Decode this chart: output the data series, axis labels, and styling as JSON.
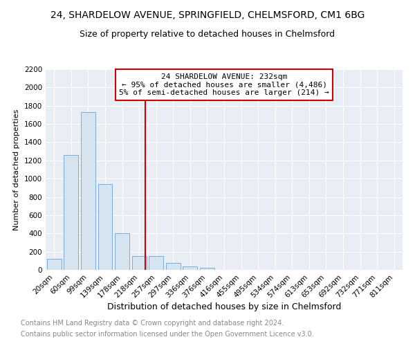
{
  "title": "24, SHARDELOW AVENUE, SPRINGFIELD, CHELMSFORD, CM1 6BG",
  "subtitle": "Size of property relative to detached houses in Chelmsford",
  "xlabel": "Distribution of detached houses by size in Chelmsford",
  "ylabel": "Number of detached properties",
  "bar_labels": [
    "20sqm",
    "60sqm",
    "99sqm",
    "139sqm",
    "178sqm",
    "218sqm",
    "257sqm",
    "297sqm",
    "336sqm",
    "376sqm",
    "416sqm",
    "455sqm",
    "495sqm",
    "534sqm",
    "574sqm",
    "613sqm",
    "653sqm",
    "692sqm",
    "732sqm",
    "771sqm",
    "811sqm"
  ],
  "bar_values": [
    120,
    1260,
    1730,
    940,
    400,
    155,
    150,
    75,
    40,
    20,
    0,
    0,
    0,
    0,
    0,
    0,
    0,
    0,
    0,
    0,
    0
  ],
  "bar_color": "#d6e4f0",
  "bar_edgecolor": "#7aace0",
  "ylim": [
    0,
    2200
  ],
  "yticks": [
    0,
    200,
    400,
    600,
    800,
    1000,
    1200,
    1400,
    1600,
    1800,
    2000,
    2200
  ],
  "vline_color": "#cc0000",
  "property_sqm": 232,
  "bin_edges": [
    20,
    60,
    99,
    139,
    178,
    218,
    257,
    297,
    336,
    376,
    416,
    455,
    495,
    534,
    574,
    613,
    653,
    692,
    732,
    771,
    811,
    851
  ],
  "annotation_line1": "24 SHARDELOW AVENUE: 232sqm",
  "annotation_line2": "← 95% of detached houses are smaller (4,486)",
  "annotation_line3": "5% of semi-detached houses are larger (214) →",
  "annotation_box_color": "#cc0000",
  "footer_line1": "Contains HM Land Registry data © Crown copyright and database right 2024.",
  "footer_line2": "Contains public sector information licensed under the Open Government Licence v3.0.",
  "bg_color": "#e8eef4",
  "grid_color": "#ffffff",
  "title_fontsize": 10,
  "subtitle_fontsize": 9,
  "ylabel_fontsize": 8,
  "xlabel_fontsize": 9,
  "tick_fontsize": 7.5,
  "footer_fontsize": 7,
  "footer_color": "#888888"
}
